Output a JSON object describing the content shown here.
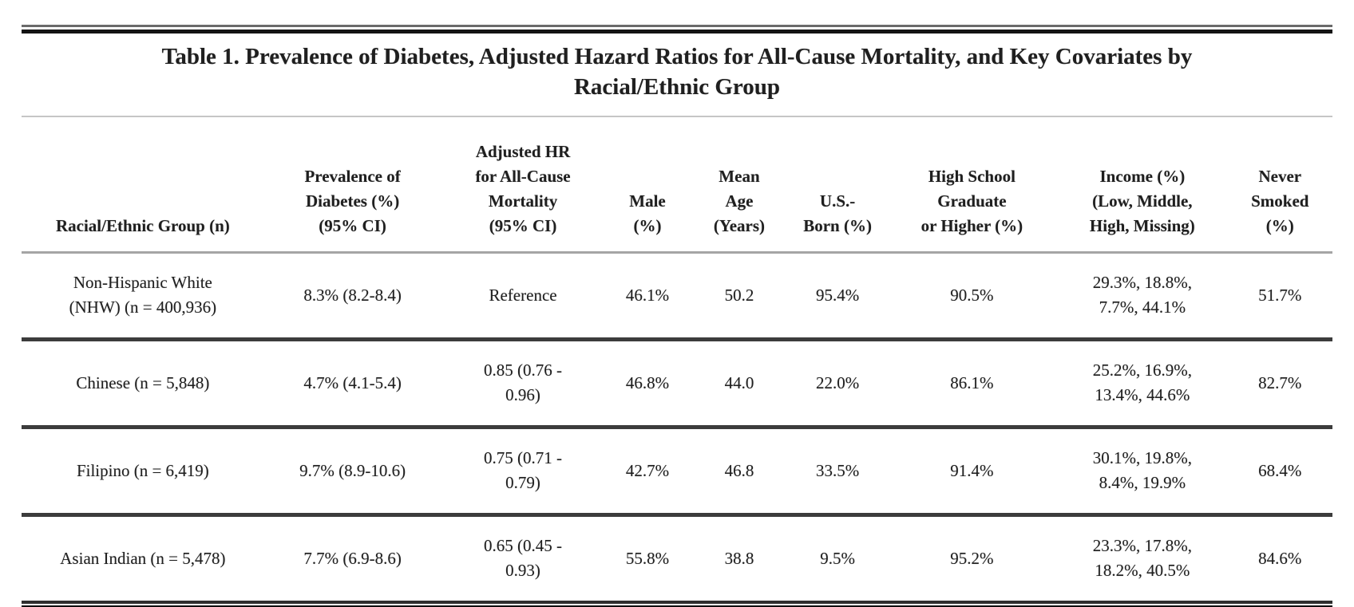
{
  "table": {
    "title": "Table 1. Prevalence of Diabetes, Adjusted Hazard Ratios for All-Cause Mortality, and Key Covariates by\nRacial/Ethnic Group",
    "header": {
      "cols": [
        "Racial/Ethnic Group (n)",
        "Prevalence of\nDiabetes (%)\n(95% CI)",
        "Adjusted HR\nfor All-Cause\nMortality\n(95% CI)",
        "Male\n(%)",
        "Mean\nAge\n(Years)",
        "U.S.-\nBorn (%)",
        "High School\nGraduate\nor Higher (%)",
        "Income (%)\n(Low, Middle,\nHigh, Missing)",
        "Never\nSmoked\n(%)"
      ]
    },
    "rows": [
      {
        "cells": [
          "Non-Hispanic White\n(NHW) (n = 400,936)",
          "8.3% (8.2-8.4)",
          "Reference",
          "46.1%",
          "50.2",
          "95.4%",
          "90.5%",
          "29.3%, 18.8%,\n7.7%, 44.1%",
          "51.7%"
        ]
      },
      {
        "cells": [
          "Chinese (n = 5,848)",
          "4.7% (4.1-5.4)",
          "0.85 (0.76 -\n0.96)",
          "46.8%",
          "44.0",
          "22.0%",
          "86.1%",
          "25.2%, 16.9%,\n13.4%, 44.6%",
          "82.7%"
        ]
      },
      {
        "cells": [
          "Filipino (n = 6,419)",
          "9.7% (8.9-10.6)",
          "0.75 (0.71 -\n0.79)",
          "42.7%",
          "46.8",
          "33.5%",
          "91.4%",
          "30.1%, 19.8%,\n8.4%, 19.9%",
          "68.4%"
        ]
      },
      {
        "cells": [
          "Asian Indian (n = 5,478)",
          "7.7% (6.9-8.6)",
          "0.65 (0.45 -\n0.93)",
          "55.8%",
          "38.8",
          "9.5%",
          "95.2%",
          "23.3%, 17.8%,\n18.2%, 40.5%",
          "84.6%"
        ]
      }
    ]
  }
}
